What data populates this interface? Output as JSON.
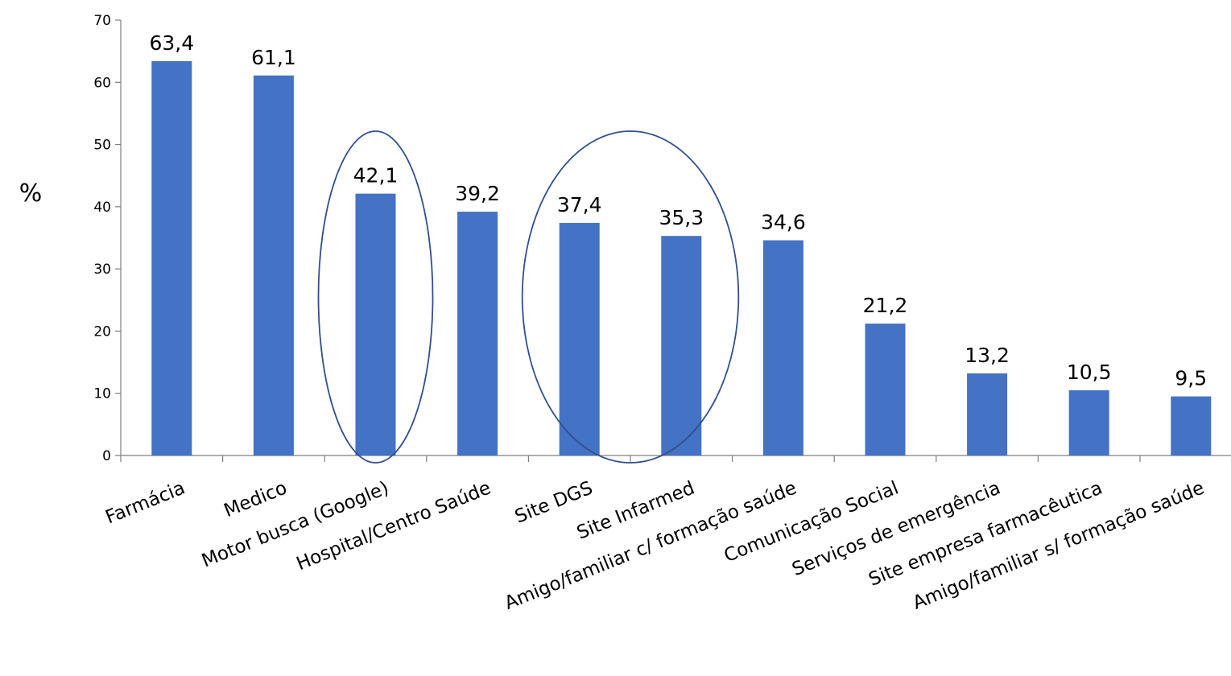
{
  "chart_data": {
    "type": "bar",
    "ylabel": "%",
    "ylim": [
      0,
      70
    ],
    "yticks": [
      0,
      10,
      20,
      30,
      40,
      50,
      60,
      70
    ],
    "ytick_labels": [
      "0",
      "10",
      "20",
      "30",
      "40",
      "50",
      "60",
      "70"
    ],
    "grid": false,
    "legend": "none",
    "bar_color": "#4472C4",
    "highlight_color": "#2F4F8F",
    "categories": [
      "Farmácia",
      "Medico",
      "Motor busca (Google)",
      "Hospital/Centro Saúde",
      "Site DGS",
      "Site Infarmed",
      "Amigo/familiar c/ formação saúde",
      "Comunicação Social",
      "Serviços de emergência",
      "Site empresa farmacêutica",
      "Amigo/familiar s/ formação saúde"
    ],
    "values": [
      63.4,
      61.1,
      42.1,
      39.2,
      37.4,
      35.3,
      34.6,
      21.2,
      13.2,
      10.5,
      9.5
    ],
    "data_labels": [
      "63,4",
      "61,1",
      "42,1",
      "39,2",
      "37,4",
      "35,3",
      "34,6",
      "21,2",
      "13,2",
      "10,5",
      "9,5"
    ],
    "annotations": [
      {
        "shape": "ellipse",
        "encloses": [
          "Motor busca (Google)"
        ]
      },
      {
        "shape": "ellipse",
        "encloses": [
          "Site DGS",
          "Site Infarmed"
        ]
      }
    ]
  }
}
